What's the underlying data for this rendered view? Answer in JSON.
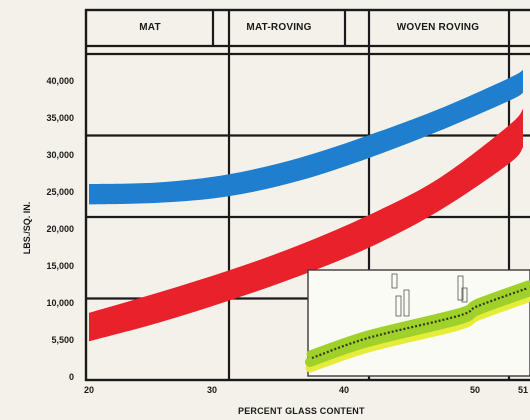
{
  "chart_data": {
    "type": "area",
    "title": "",
    "xlabel": "PERCENT GLASS CONTENT",
    "ylabel": "LBS./SQ. IN.",
    "xlim": [
      20,
      51
    ],
    "ylim": [
      0,
      40000
    ],
    "x_tick_labels": [
      "20",
      "30",
      "40",
      "50",
      "51"
    ],
    "y_tick_labels": [
      "0",
      "5,500",
      "10,000",
      "15,000",
      "20,000",
      "25,000",
      "30,000",
      "35,000",
      "40,000"
    ],
    "header_sections": [
      "MAT",
      "MAT-ROVING",
      "WOVEN ROVING"
    ],
    "grid": true,
    "series": [
      {
        "color": "#1f7fce",
        "x": [
          20,
          25,
          30,
          35,
          40,
          45,
          50,
          51
        ],
        "upper": [
          23800,
          24000,
          25000,
          27000,
          29800,
          33000,
          36800,
          37800
        ],
        "lower": [
          21300,
          21500,
          22300,
          24200,
          27000,
          30300,
          34000,
          35000
        ]
      },
      {
        "color": "#e8212b",
        "x": [
          20,
          25,
          30,
          35,
          40,
          45,
          50,
          51
        ],
        "upper": [
          8000,
          10500,
          13200,
          16300,
          20000,
          24500,
          31000,
          33000
        ],
        "lower": [
          4500,
          6800,
          9500,
          12500,
          16000,
          20500,
          26300,
          28300
        ]
      }
    ]
  },
  "colors": {
    "background": "#f4f1ea",
    "grid": "#1a1a1a",
    "inset_green": "#9fd12a",
    "inset_yellow": "#e6ec3a",
    "inset_dark": "#2d3a1a"
  },
  "inset": {
    "type": "laminate-cross-section-illustration"
  }
}
